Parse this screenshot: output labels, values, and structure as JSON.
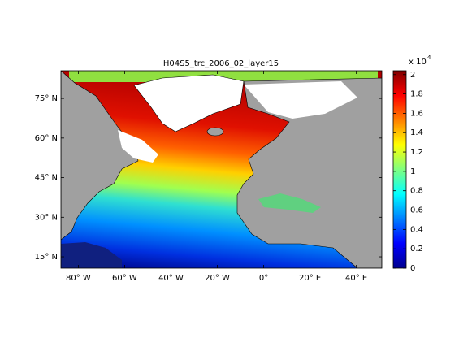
{
  "title": "H04S5_trc_2006_02_layer15",
  "map": {
    "xlim": [
      -87.5,
      51
    ],
    "ylim": [
      10.7,
      85.5
    ],
    "xticks": [
      {
        "value": -80,
        "label": "80° W"
      },
      {
        "value": -60,
        "label": "60° W"
      },
      {
        "value": -40,
        "label": "40° W"
      },
      {
        "value": -20,
        "label": "20° W"
      },
      {
        "value": 0,
        "label": "0°"
      },
      {
        "value": 20,
        "label": "20° E"
      },
      {
        "value": 40,
        "label": "40° E"
      }
    ],
    "yticks": [
      {
        "value": 15,
        "label": "15° N"
      },
      {
        "value": 30,
        "label": "30° N"
      },
      {
        "value": 45,
        "label": "45° N"
      },
      {
        "value": 60,
        "label": "60° N"
      },
      {
        "value": 75,
        "label": "75° N"
      }
    ]
  },
  "colorbar": {
    "lim": [
      0,
      2.04
    ],
    "ticks": [
      0,
      0.2,
      0.4,
      0.6,
      0.8,
      1,
      1.2,
      1.4,
      1.6,
      1.8,
      2
    ],
    "multiplier": "x 10",
    "exponent": "4",
    "colormap": "jet"
  }
}
